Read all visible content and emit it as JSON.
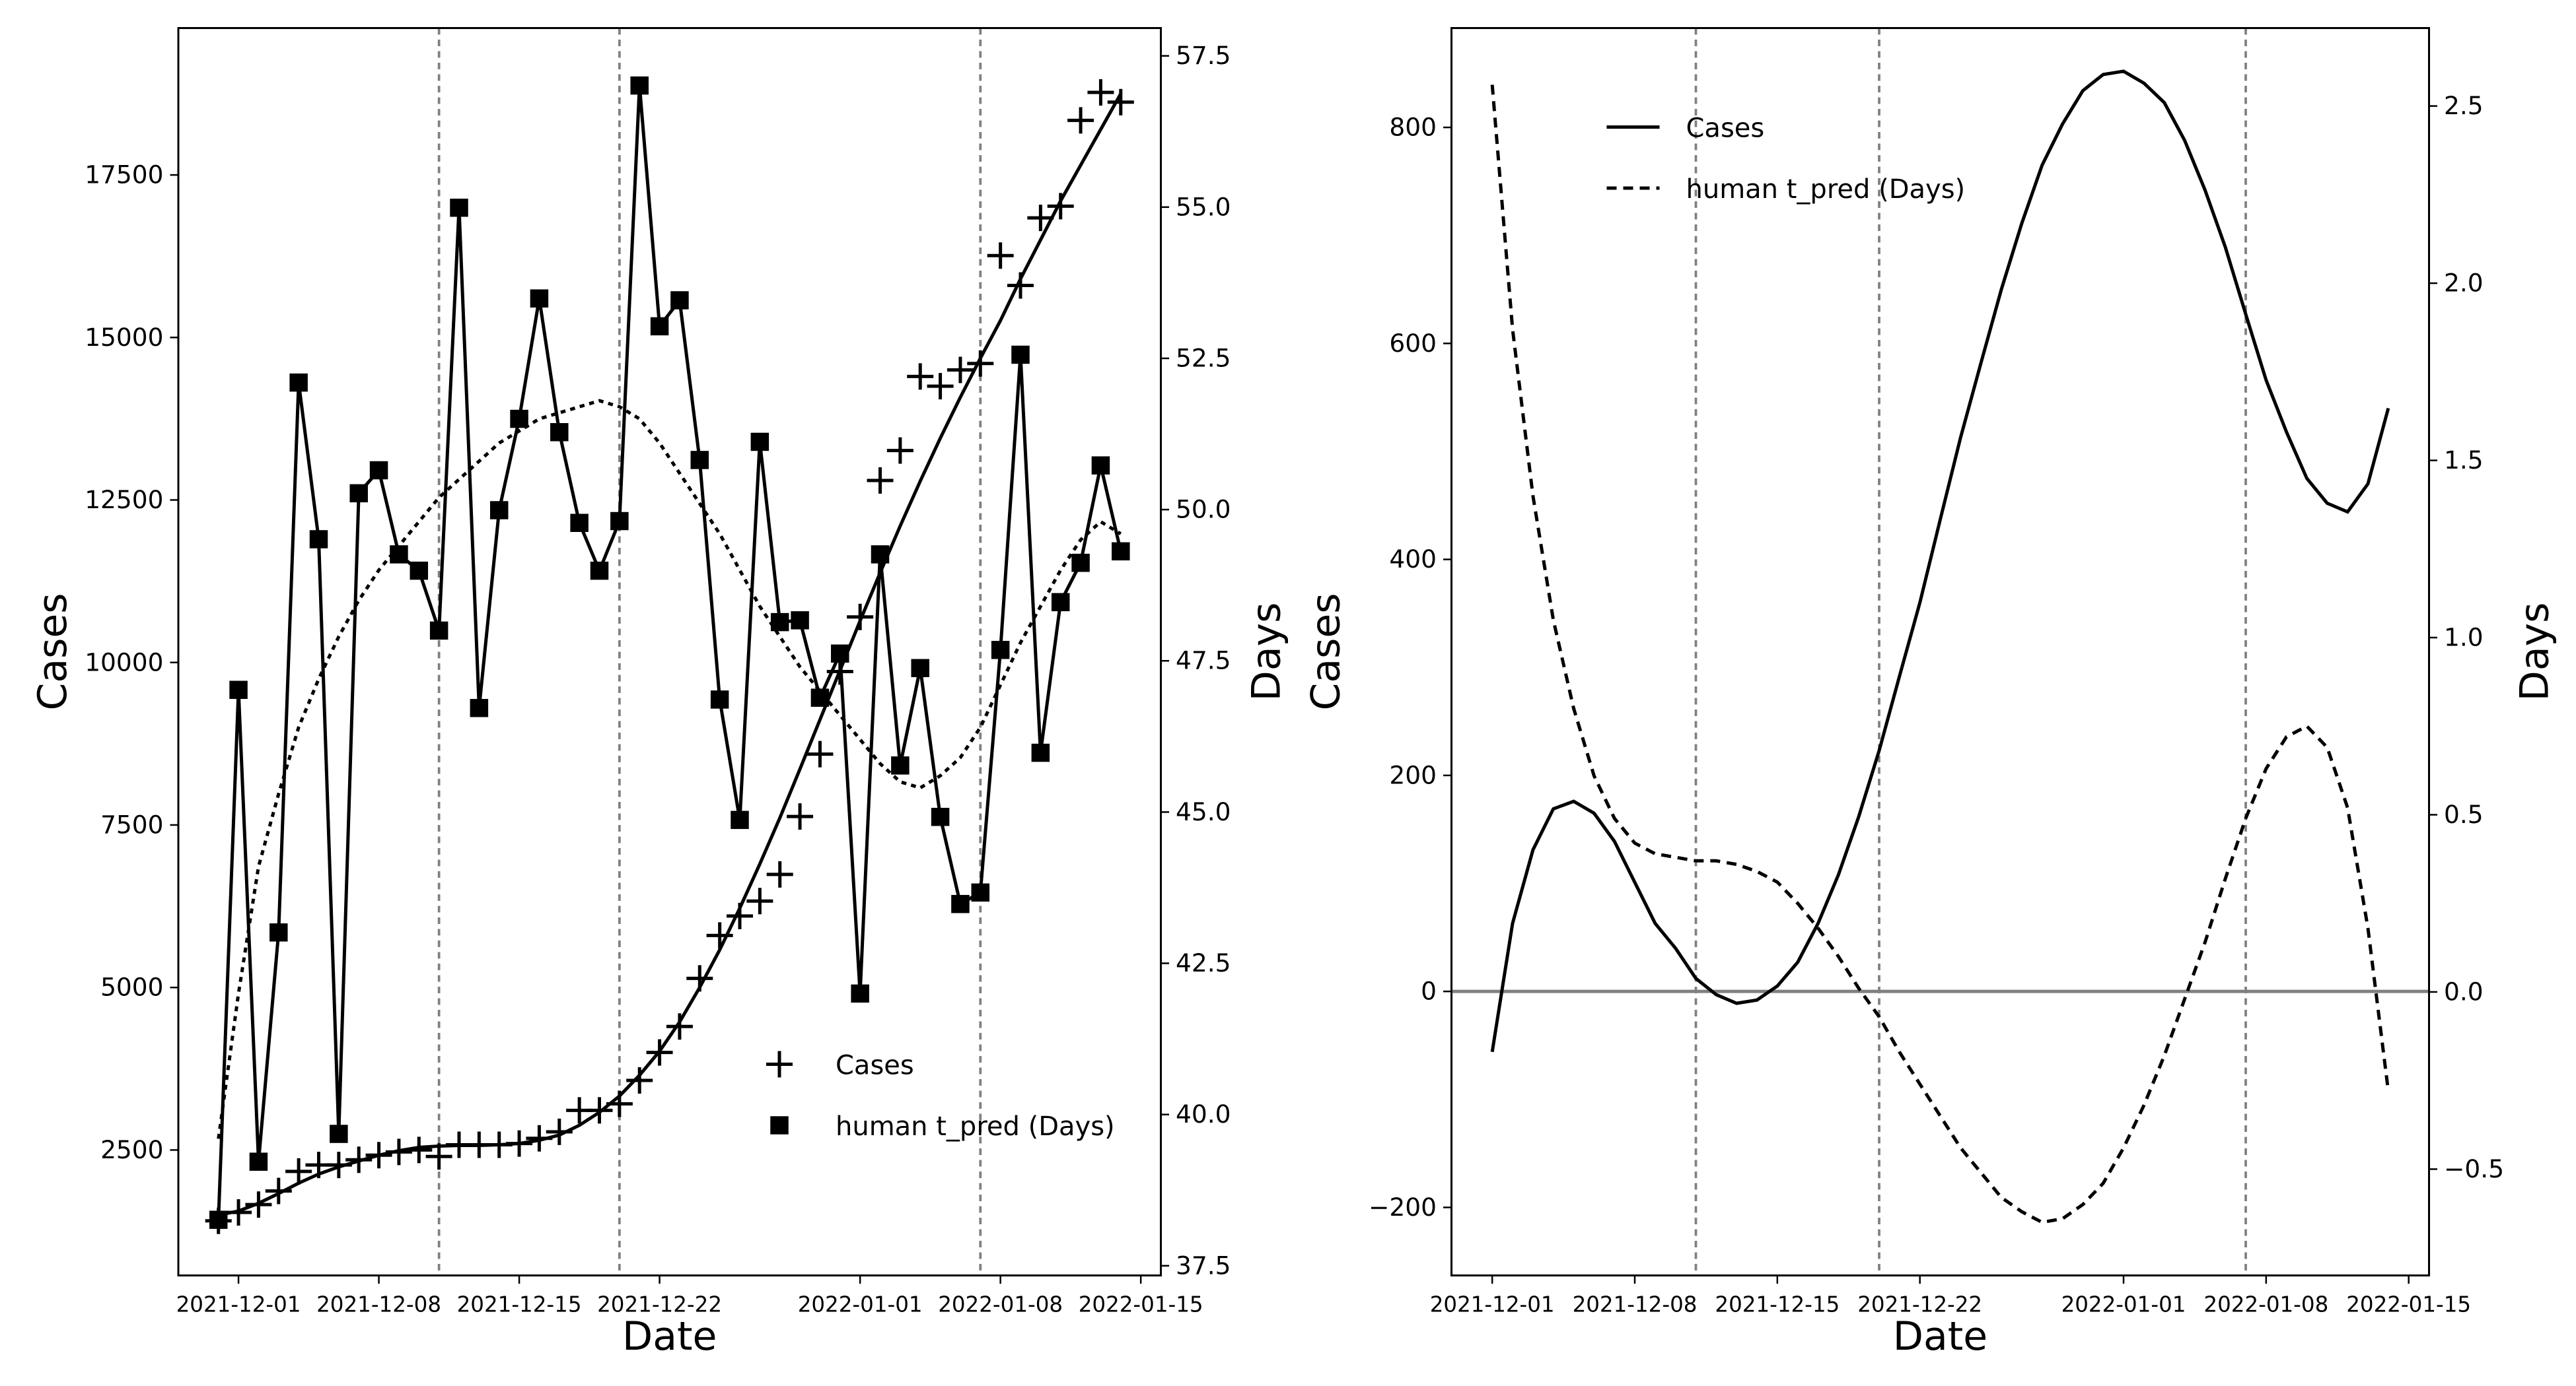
{
  "chart_data": [
    {
      "type": "line",
      "xlabel": "Date",
      "ylabel": "Cases",
      "y2label": "Days",
      "x": [
        "2021-11-30",
        "2021-12-01",
        "2021-12-02",
        "2021-12-03",
        "2021-12-04",
        "2021-12-05",
        "2021-12-06",
        "2021-12-07",
        "2021-12-08",
        "2021-12-09",
        "2021-12-10",
        "2021-12-11",
        "2021-12-12",
        "2021-12-13",
        "2021-12-14",
        "2021-12-15",
        "2021-12-16",
        "2021-12-17",
        "2021-12-18",
        "2021-12-19",
        "2021-12-20",
        "2021-12-21",
        "2021-12-22",
        "2021-12-23",
        "2021-12-24",
        "2021-12-25",
        "2021-12-26",
        "2021-12-27",
        "2021-12-28",
        "2021-12-29",
        "2021-12-30",
        "2021-12-31",
        "2022-01-01",
        "2022-01-02",
        "2022-01-03",
        "2022-01-04",
        "2022-01-05",
        "2022-01-06",
        "2022-01-07",
        "2022-01-08",
        "2022-01-09",
        "2022-01-10",
        "2022-01-11",
        "2022-01-12",
        "2022-01-13",
        "2022-01-14"
      ],
      "xlim": [
        "2021-11-28",
        "2022-01-16"
      ],
      "xticks": [
        "2021-12-01",
        "2021-12-08",
        "2021-12-15",
        "2021-12-22",
        "2022-01-01",
        "2022-01-08",
        "2022-01-15"
      ],
      "ylim": [
        570,
        19760
      ],
      "yticks": [
        2500,
        5000,
        7500,
        10000,
        12500,
        15000,
        17500
      ],
      "y2lim": [
        37.34,
        57.96
      ],
      "y2ticks": [
        37.5,
        {
          "value": 40,
          "label": "40.0"
        },
        42.5,
        {
          "value": 45,
          "label": "45.0"
        },
        47.5,
        {
          "value": 50,
          "label": "50.0"
        },
        52.5,
        {
          "value": 55,
          "label": "55.0"
        },
        57.5
      ],
      "vlines": [
        "2021-12-11",
        "2021-12-20",
        "2022-01-07"
      ],
      "legend": "lower right",
      "series": [
        {
          "name": "Cases",
          "color": "#000000",
          "marker": "plus",
          "line": "none",
          "values": [
            1410,
            1540,
            1660,
            1870,
            2170,
            2270,
            2270,
            2350,
            2420,
            2470,
            2500,
            2400,
            2580,
            2580,
            2580,
            2600,
            2680,
            2780,
            3110,
            3110,
            3210,
            3570,
            4000,
            4400,
            5140,
            5800,
            6100,
            6330,
            6740,
            7630,
            8590,
            9860,
            10700,
            12800,
            13260,
            14400,
            14250,
            14500,
            14600,
            16260,
            15800,
            16840,
            17020,
            18340,
            18770,
            18620
          ]
        },
        {
          "color": "#000000",
          "marker": "none",
          "line": "solid",
          "values": [
            1500,
            1560,
            1680,
            1830,
            1990,
            2130,
            2240,
            2330,
            2420,
            2490,
            2540,
            2560,
            2570,
            2570,
            2580,
            2600,
            2650,
            2730,
            2880,
            3080,
            3330,
            3650,
            4020,
            4470,
            5000,
            5580,
            6220,
            6900,
            7610,
            8360,
            9120,
            9880,
            10640,
            11380,
            12100,
            12790,
            13450,
            14080,
            14680,
            15260,
            15900,
            16500,
            17100,
            17650,
            18200,
            18750
          ]
        },
        {
          "name": "human t_pred (Days)",
          "color": "#000000",
          "marker": "square",
          "line": "solid",
          "axis": "y2",
          "values": [
            38.26,
            47.02,
            39.22,
            43.01,
            52.1,
            49.51,
            39.68,
            50.27,
            50.65,
            49.26,
            48.99,
            48.0,
            54.99,
            46.72,
            49.99,
            51.5,
            53.49,
            51.28,
            49.78,
            48.99,
            49.81,
            57.01,
            53.03,
            53.46,
            50.82,
            46.86,
            44.87,
            51.12,
            48.14,
            48.17,
            46.89,
            47.62,
            42.0,
            49.26,
            45.77,
            47.38,
            44.92,
            43.48,
            43.67,
            47.68,
            52.56,
            45.98,
            48.47,
            49.12,
            50.73,
            49.31
          ]
        },
        {
          "color": "#000000",
          "marker": "none",
          "line": "dotted",
          "axis": "y2",
          "values": [
            39.6,
            42.0,
            44.1,
            45.3,
            46.4,
            47.2,
            47.9,
            48.5,
            49.0,
            49.4,
            49.8,
            50.2,
            50.5,
            50.8,
            51.1,
            51.3,
            51.5,
            51.6,
            51.7,
            51.8,
            51.7,
            51.5,
            51.1,
            50.6,
            50.1,
            49.6,
            49.0,
            48.4,
            47.9,
            47.4,
            47.0,
            46.6,
            46.2,
            45.8,
            45.5,
            45.4,
            45.6,
            45.9,
            46.4,
            47.1,
            47.8,
            48.4,
            49.0,
            49.5,
            49.8,
            49.6
          ]
        }
      ]
    },
    {
      "type": "line",
      "xlabel": "Date",
      "ylabel": "Cases",
      "y2label": "Days",
      "x": [
        "2021-12-01",
        "2021-12-02",
        "2021-12-03",
        "2021-12-04",
        "2021-12-05",
        "2021-12-06",
        "2021-12-07",
        "2021-12-08",
        "2021-12-09",
        "2021-12-10",
        "2021-12-11",
        "2021-12-12",
        "2021-12-13",
        "2021-12-14",
        "2021-12-15",
        "2021-12-16",
        "2021-12-17",
        "2021-12-18",
        "2021-12-19",
        "2021-12-20",
        "2021-12-21",
        "2021-12-22",
        "2021-12-23",
        "2021-12-24",
        "2021-12-25",
        "2021-12-26",
        "2021-12-27",
        "2021-12-28",
        "2021-12-29",
        "2021-12-30",
        "2021-12-31",
        "2022-01-01",
        "2022-01-02",
        "2022-01-03",
        "2022-01-04",
        "2022-01-05",
        "2022-01-06",
        "2022-01-07",
        "2022-01-08",
        "2022-01-09",
        "2022-01-10",
        "2022-01-11",
        "2022-01-12",
        "2022-01-13",
        "2022-01-14"
      ],
      "xlim": [
        "2021-11-29",
        "2022-01-16"
      ],
      "xticks": [
        "2021-12-01",
        "2021-12-08",
        "2021-12-15",
        "2021-12-22",
        "2022-01-01",
        "2022-01-08",
        "2022-01-15"
      ],
      "ylim": [
        -263,
        892
      ],
      "yticks": [
        {
          "value": -200,
          "label": "−200"
        },
        0,
        200,
        400,
        600,
        800
      ],
      "y2lim": [
        -0.8,
        2.72
      ],
      "y2ticks": [
        {
          "value": -0.5,
          "label": "−0.5"
        },
        {
          "value": 0,
          "label": "0.0"
        },
        0.5,
        {
          "value": 1,
          "label": "1.0"
        },
        1.5,
        {
          "value": 2,
          "label": "2.0"
        },
        2.5
      ],
      "vlines": [
        "2021-12-11",
        "2021-12-20",
        "2022-01-07"
      ],
      "hlines": [
        0
      ],
      "legend": "upper left",
      "series": [
        {
          "name": "Cases",
          "color": "#000000",
          "marker": "none",
          "line": "solid",
          "values": [
            -56,
            63,
            131,
            169,
            176,
            165,
            139,
            101,
            63,
            40,
            12,
            -3,
            -11,
            -8,
            5,
            27,
            63,
            108,
            162,
            223,
            292,
            360,
            437,
            513,
            582,
            650,
            711,
            765,
            803,
            834,
            849,
            852,
            841,
            823,
            788,
            742,
            689,
            627,
            566,
            518,
            475,
            452,
            444,
            470,
            540
          ]
        },
        {
          "name": "human t_pred (Days)",
          "color": "#000000",
          "marker": "none",
          "line": "dashed",
          "axis": "y2",
          "values": [
            2.56,
            1.87,
            1.4,
            1.05,
            0.8,
            0.61,
            0.49,
            0.42,
            0.39,
            0.38,
            0.37,
            0.37,
            0.36,
            0.34,
            0.31,
            0.25,
            0.18,
            0.1,
            0.01,
            -0.07,
            -0.17,
            -0.26,
            -0.35,
            -0.44,
            -0.51,
            -0.58,
            -0.62,
            -0.65,
            -0.64,
            -0.6,
            -0.54,
            -0.44,
            -0.32,
            -0.18,
            -0.02,
            0.14,
            0.32,
            0.49,
            0.63,
            0.72,
            0.75,
            0.69,
            0.52,
            0.18,
            -0.28
          ]
        }
      ]
    }
  ]
}
